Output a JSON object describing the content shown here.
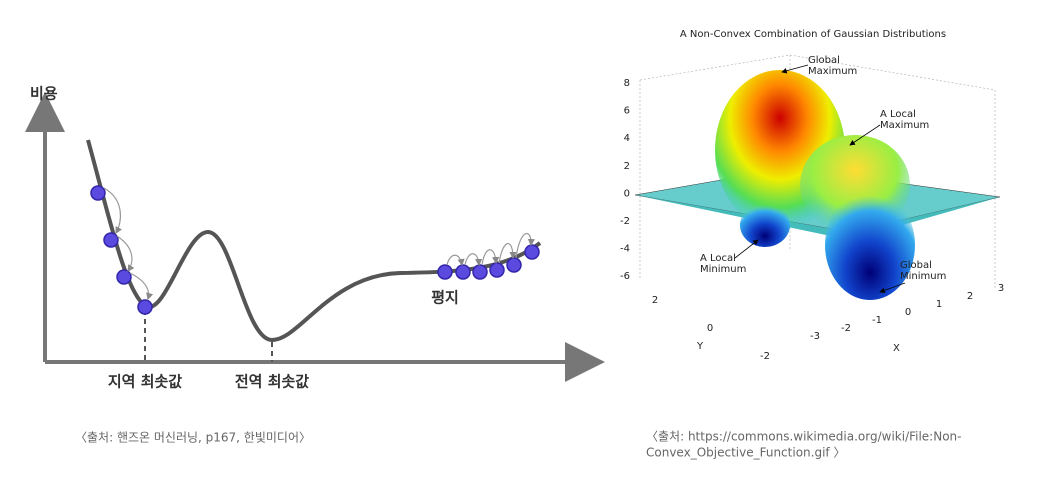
{
  "left_figure": {
    "y_axis_label": "비용",
    "local_min_label": "지역 최솟값",
    "global_min_label": "전역 최솟값",
    "plateau_label": "평지",
    "caption": "〈출처: 핸즈온 머신러닝, p167, 한빛미디어〉"
  },
  "right_figure": {
    "title": "A Non-Convex Combination of Gaussian Distributions",
    "annotations": [
      "Global Maximum",
      "A Local Maximum",
      "A Local Minimum",
      "Global Minimum"
    ],
    "z_ticks": [
      "8",
      "6",
      "4",
      "2",
      "0",
      "-2",
      "-4",
      "-6"
    ],
    "y_ticks": [
      "2",
      "0",
      "-2"
    ],
    "x_ticks": [
      "-3",
      "-2",
      "-1",
      "0",
      "1",
      "2",
      "3"
    ],
    "x_label": "X",
    "y_label": "Y",
    "caption_lines": [
      "〈출처: https://commons.wikimedia.org/wiki/File:Non-",
      "Convex_Objective_Function.gif 〉"
    ]
  }
}
